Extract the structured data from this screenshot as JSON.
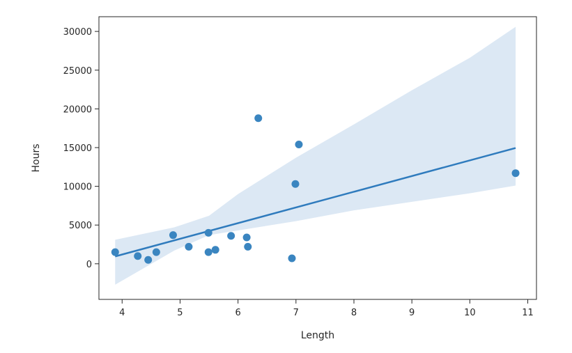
{
  "chart_data": {
    "type": "scatter",
    "title": "",
    "xlabel": "Length",
    "ylabel": "Hours",
    "xlim": [
      3.6,
      11.15
    ],
    "ylim": [
      -4600,
      31900
    ],
    "x_ticks": [
      4,
      5,
      6,
      7,
      8,
      9,
      10,
      11
    ],
    "y_ticks": [
      0,
      5000,
      10000,
      15000,
      20000,
      25000,
      30000
    ],
    "grid": false,
    "legend": "none",
    "colors": {
      "points": "#3a85c0",
      "regression_line": "#2f7bbd",
      "confidence_band": "#dce8f4",
      "axes": "#262626"
    },
    "points": [
      {
        "x": 3.88,
        "y": 1500
      },
      {
        "x": 4.27,
        "y": 1000
      },
      {
        "x": 4.45,
        "y": 500
      },
      {
        "x": 4.59,
        "y": 1500
      },
      {
        "x": 4.88,
        "y": 3700
      },
      {
        "x": 5.15,
        "y": 2200
      },
      {
        "x": 5.49,
        "y": 4000
      },
      {
        "x": 5.49,
        "y": 1500
      },
      {
        "x": 5.61,
        "y": 1800
      },
      {
        "x": 5.88,
        "y": 3600
      },
      {
        "x": 6.15,
        "y": 3400
      },
      {
        "x": 6.17,
        "y": 2200
      },
      {
        "x": 6.35,
        "y": 18800
      },
      {
        "x": 6.93,
        "y": 700
      },
      {
        "x": 6.99,
        "y": 10300
      },
      {
        "x": 7.05,
        "y": 15400
      },
      {
        "x": 10.79,
        "y": 11700
      }
    ],
    "regression_line": {
      "x": [
        3.88,
        10.79
      ],
      "y": [
        950,
        14950
      ]
    },
    "confidence_band": {
      "x": [
        3.88,
        4.9,
        5.5,
        6.0,
        7.0,
        8.0,
        9.0,
        10.0,
        10.79
      ],
      "lower": [
        -2700,
        1700,
        3700,
        4300,
        5500,
        6900,
        8000,
        9100,
        10100
      ],
      "upper": [
        3100,
        4700,
        6200,
        9000,
        13700,
        18000,
        22400,
        26600,
        30600
      ]
    }
  }
}
